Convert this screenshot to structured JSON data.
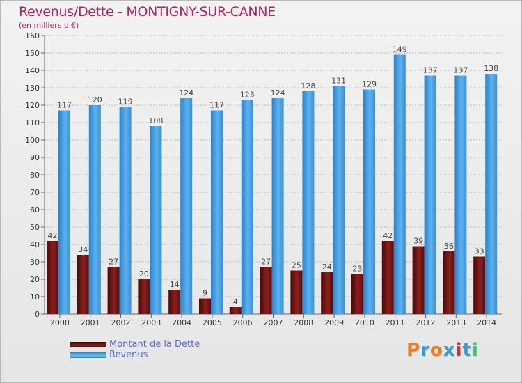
{
  "title": "Revenus/Dette - MONTIGNY-SUR-CANNE",
  "subtitle": "(en milliers d'€)",
  "brand": "Proxiti",
  "colors": {
    "title": "#b5245a",
    "dette": "#7a1515",
    "revenus": "#4aa3e4",
    "legend_text": "#5a6ad8",
    "brand_letters": [
      "#e67e22",
      "#3a9ad9",
      "#e67e22",
      "#3a9ad9",
      "#c0392b",
      "#3a9ad9",
      "#2ecc71"
    ]
  },
  "legend": [
    {
      "label": "Montant de la Dette",
      "color": "#7a1515"
    },
    {
      "label": "Revenus",
      "color": "#4aa3e4"
    }
  ],
  "chart_data": {
    "type": "bar",
    "categories": [
      "2000",
      "2001",
      "2002",
      "2003",
      "2004",
      "2005",
      "2006",
      "2007",
      "2008",
      "2009",
      "2010",
      "2011",
      "2012",
      "2013",
      "2014"
    ],
    "series": [
      {
        "name": "Montant de la Dette",
        "values": [
          42,
          34,
          27,
          20,
          14,
          9,
          4,
          27,
          25,
          24,
          23,
          42,
          39,
          36,
          33
        ]
      },
      {
        "name": "Revenus",
        "values": [
          117,
          120,
          119,
          108,
          124,
          117,
          123,
          124,
          128,
          131,
          129,
          149,
          137,
          137,
          138
        ]
      }
    ],
    "ylim": [
      0,
      160
    ],
    "yticks": [
      0,
      10,
      20,
      30,
      40,
      50,
      60,
      70,
      80,
      90,
      100,
      110,
      120,
      130,
      140,
      150,
      160
    ],
    "grid": "dashed-horizontal",
    "legend_position": "bottom-left"
  }
}
